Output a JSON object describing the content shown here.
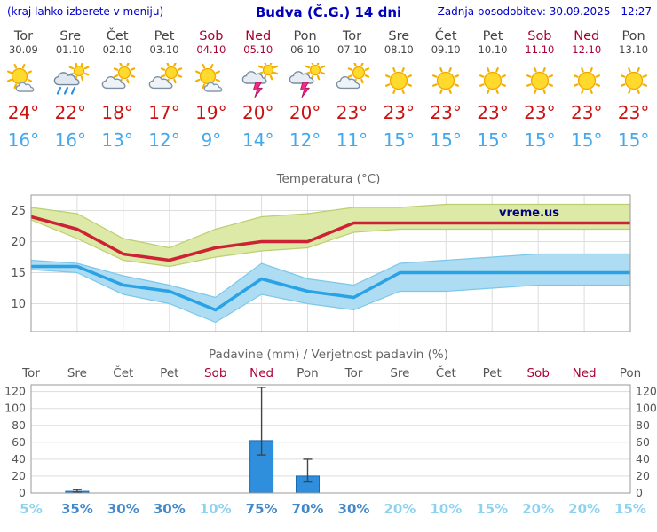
{
  "header": {
    "menu_hint": "(kraj lahko izberete v meniju)",
    "title": "Budva (Č.G.) 14 dni",
    "last_update": "Zadnja posodobitev: 30.09.2025 - 12:27"
  },
  "colors": {
    "header_blue": "#0000cc",
    "weekend_red": "#aa0033",
    "tmax_red": "#cc1111",
    "tmin_blue": "#44a8ec",
    "temp_max_line": "#cc2233",
    "temp_max_band": "#dde9a6",
    "temp_max_band_edge": "#bccf70",
    "temp_min_line": "#2aa2e6",
    "temp_min_band": "#aedcf2",
    "temp_min_band_edge": "#7cc8ea",
    "bar_blue": "#2f8fdd",
    "bar_border": "#1a6ab0",
    "prob_dark": "#4488cc",
    "prob_light": "#8ed2ee",
    "watermark_navy": "#000080"
  },
  "days": [
    {
      "name": "Tor",
      "date": "30.09",
      "weekend": false,
      "icon": "sun-cloud",
      "tmax": "24°",
      "tmin": "16°"
    },
    {
      "name": "Sre",
      "date": "01.10",
      "weekend": false,
      "icon": "rain",
      "tmax": "22°",
      "tmin": "16°"
    },
    {
      "name": "Čet",
      "date": "02.10",
      "weekend": false,
      "icon": "cloud-sun",
      "tmax": "18°",
      "tmin": "13°"
    },
    {
      "name": "Pet",
      "date": "03.10",
      "weekend": false,
      "icon": "cloud-sun",
      "tmax": "17°",
      "tmin": "12°"
    },
    {
      "name": "Sob",
      "date": "04.10",
      "weekend": true,
      "icon": "sun-cloud",
      "tmax": "19°",
      "tmin": "9°"
    },
    {
      "name": "Ned",
      "date": "05.10",
      "weekend": true,
      "icon": "thunder",
      "tmax": "20°",
      "tmin": "14°"
    },
    {
      "name": "Pon",
      "date": "06.10",
      "weekend": false,
      "icon": "thunder",
      "tmax": "20°",
      "tmin": "12°"
    },
    {
      "name": "Tor",
      "date": "07.10",
      "weekend": false,
      "icon": "cloud-sun",
      "tmax": "23°",
      "tmin": "11°"
    },
    {
      "name": "Sre",
      "date": "08.10",
      "weekend": false,
      "icon": "sunny",
      "tmax": "23°",
      "tmin": "15°"
    },
    {
      "name": "Čet",
      "date": "09.10",
      "weekend": false,
      "icon": "sunny",
      "tmax": "23°",
      "tmin": "15°"
    },
    {
      "name": "Pet",
      "date": "10.10",
      "weekend": false,
      "icon": "sunny",
      "tmax": "23°",
      "tmin": "15°"
    },
    {
      "name": "Sob",
      "date": "11.10",
      "weekend": true,
      "icon": "sunny",
      "tmax": "23°",
      "tmin": "15°"
    },
    {
      "name": "Ned",
      "date": "12.10",
      "weekend": true,
      "icon": "sunny",
      "tmax": "23°",
      "tmin": "15°"
    },
    {
      "name": "Pon",
      "date": "13.10",
      "weekend": false,
      "icon": "sunny",
      "tmax": "23°",
      "tmin": "15°"
    }
  ],
  "chart_data": [
    {
      "type": "line",
      "title": "Temperatura (°C)",
      "watermark": "vreme.us",
      "categories": [
        "Tor",
        "Sre",
        "Čet",
        "Pet",
        "Sob",
        "Ned",
        "Pon",
        "Tor",
        "Sre",
        "Čet",
        "Pet",
        "Sob",
        "Ned",
        "Pon"
      ],
      "ylim": [
        5.5,
        27.5
      ],
      "yticks": [
        10,
        15,
        20,
        25
      ],
      "grid": true,
      "series": [
        {
          "name": "max-temperature",
          "values": [
            24,
            22,
            18,
            17,
            19,
            20,
            20,
            23,
            23,
            23,
            23,
            23,
            23,
            23
          ],
          "band_upper": [
            25.5,
            24.5,
            20.5,
            19,
            22,
            24,
            24.5,
            25.5,
            25.5,
            26,
            26,
            26,
            26,
            26
          ],
          "band_lower": [
            23.5,
            20.5,
            17,
            16,
            17.5,
            18.5,
            19,
            21.5,
            22,
            22,
            22,
            22,
            22,
            22
          ]
        },
        {
          "name": "min-temperature",
          "values": [
            16,
            16,
            13,
            12,
            9,
            14,
            12,
            11,
            15,
            15,
            15,
            15,
            15,
            15
          ],
          "band_upper": [
            17,
            16.5,
            14.5,
            13,
            11,
            16.5,
            14,
            13,
            16.5,
            17,
            17.5,
            18,
            18,
            18
          ],
          "band_lower": [
            15.5,
            15,
            11.5,
            10,
            7,
            11.5,
            10,
            9,
            12,
            12,
            12.5,
            13,
            13,
            13
          ]
        }
      ]
    },
    {
      "type": "bar",
      "title": "Padavine (mm) / Verjetnost padavin (%)",
      "categories": [
        "Tor",
        "Sre",
        "Čet",
        "Pet",
        "Sob",
        "Ned",
        "Pon",
        "Tor",
        "Sre",
        "Čet",
        "Pet",
        "Sob",
        "Ned",
        "Pon"
      ],
      "weekend": [
        false,
        false,
        false,
        false,
        true,
        true,
        false,
        false,
        false,
        false,
        false,
        true,
        true,
        false
      ],
      "values": [
        0,
        2,
        0,
        0,
        0,
        62,
        20,
        0,
        0,
        0,
        0,
        0,
        0,
        0
      ],
      "whisker_low": [
        0,
        1,
        0,
        0,
        0,
        45,
        13,
        0,
        0,
        0,
        0,
        0,
        0,
        0
      ],
      "whisker_high": [
        0,
        4,
        0,
        0,
        0,
        125,
        40,
        0,
        0,
        0,
        0,
        0,
        0,
        0
      ],
      "probabilities": [
        "5%",
        "35%",
        "30%",
        "30%",
        "10%",
        "75%",
        "70%",
        "30%",
        "20%",
        "10%",
        "15%",
        "20%",
        "20%",
        "15%"
      ],
      "ylim": [
        0,
        128
      ],
      "yticks": [
        0,
        20,
        40,
        60,
        80,
        100,
        120
      ],
      "grid": true
    }
  ]
}
